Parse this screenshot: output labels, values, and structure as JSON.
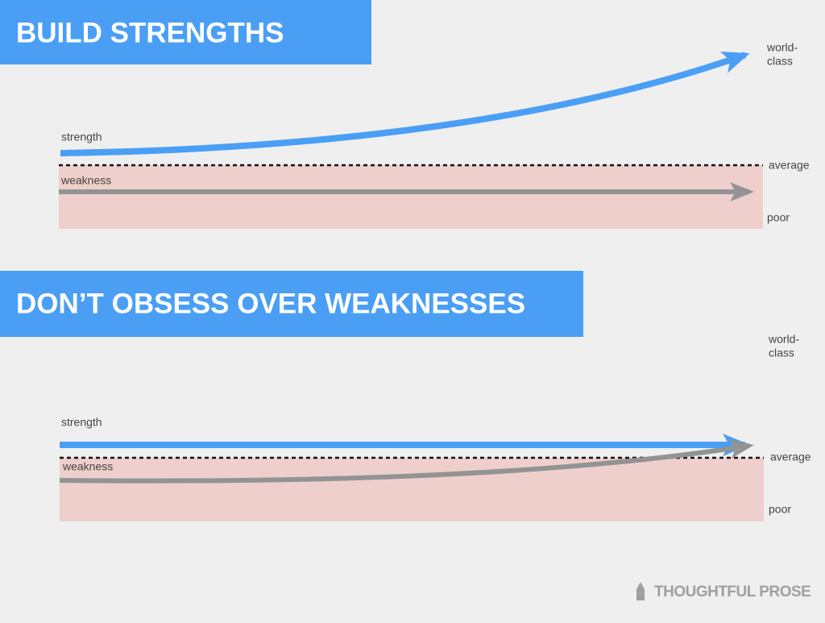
{
  "panels": [
    {
      "title": "BUILD STRENGTHS",
      "strength_label": "strength",
      "weakness_label": "weakness",
      "levels": {
        "top": [
          "world-",
          "class"
        ],
        "middle": "average",
        "bottom": "poor"
      }
    },
    {
      "title": "DON’T OBSESS OVER WEAKNESSES",
      "strength_label": "strength",
      "weakness_label": "weakness",
      "levels": {
        "top": [
          "world-",
          "class"
        ],
        "middle": "average",
        "bottom": "poor"
      }
    }
  ],
  "footer": {
    "brand": "THOUGHTFUL PROSE"
  }
}
